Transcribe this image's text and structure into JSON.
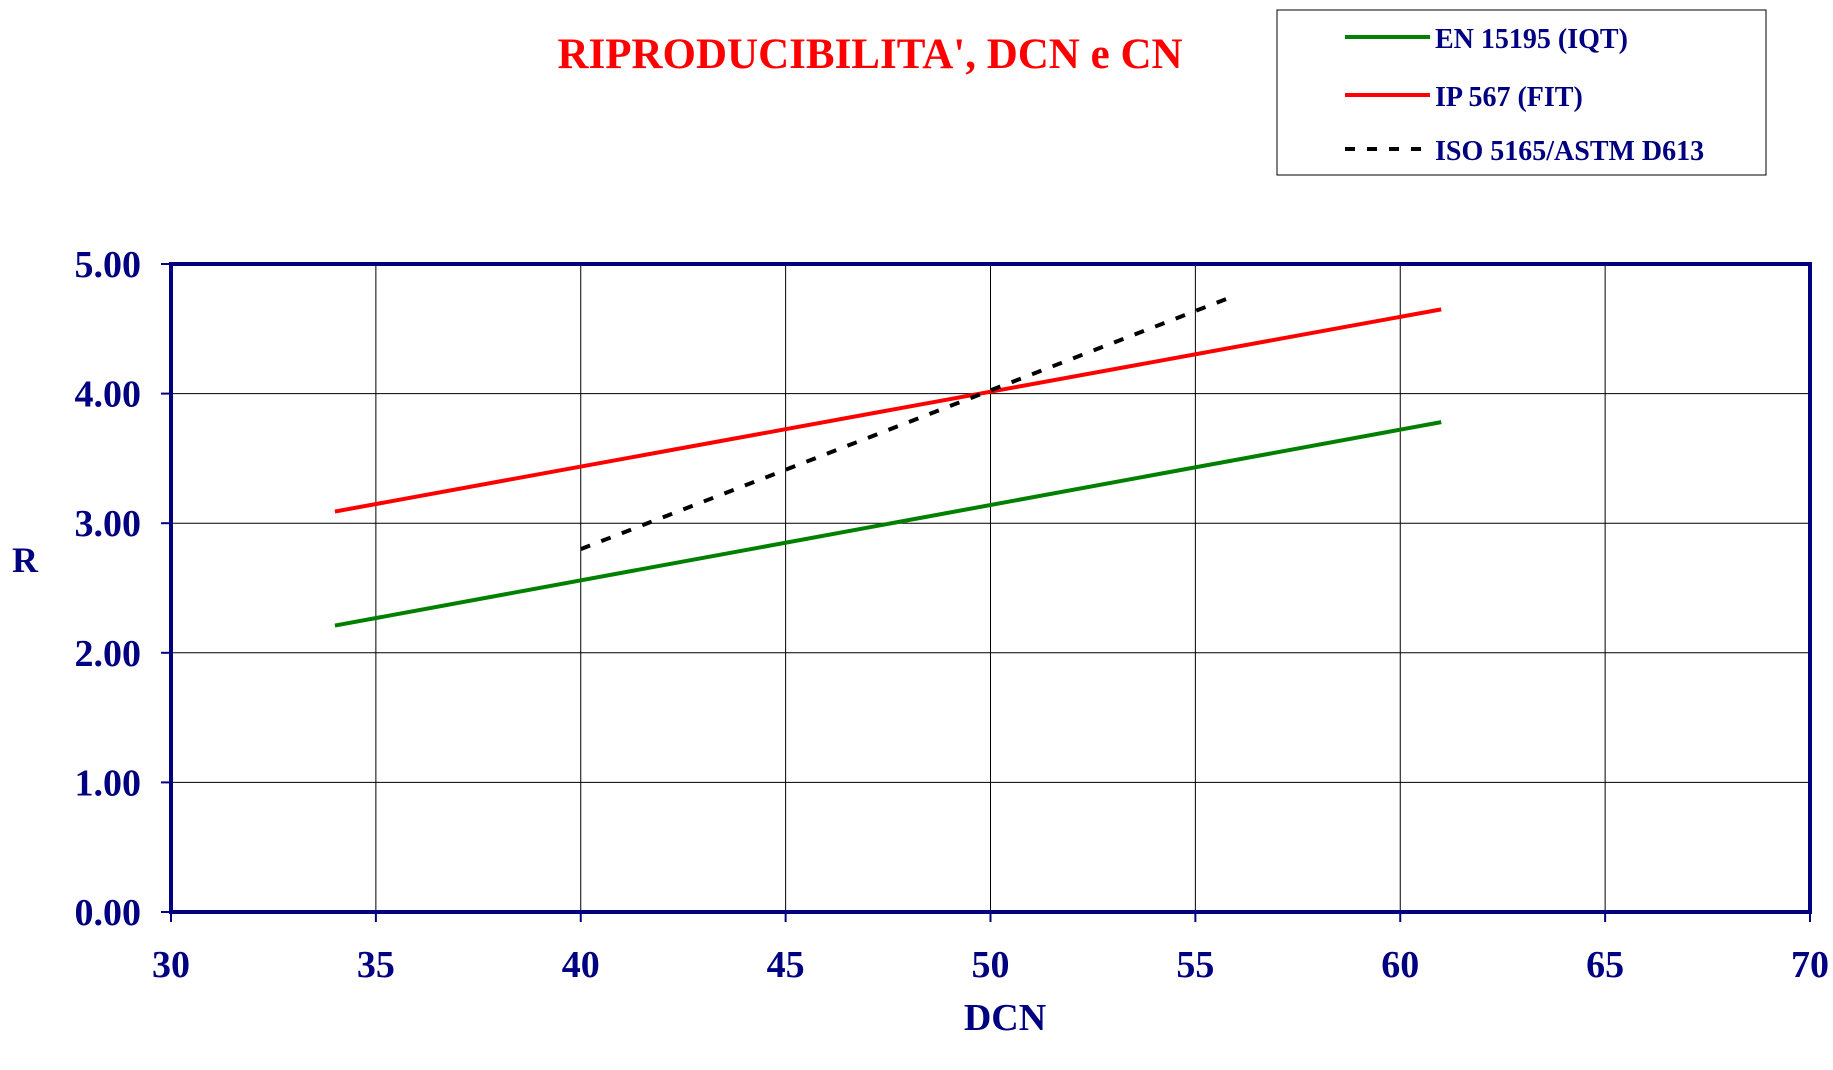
{
  "chart_data": {
    "type": "line",
    "title": "RIPRODUCIBILITA', DCN e CN",
    "xlabel": "DCN",
    "ylabel": "R",
    "xlim": [
      30,
      70
    ],
    "ylim": [
      0,
      5
    ],
    "xticks": [
      30,
      35,
      40,
      45,
      50,
      55,
      60,
      65,
      70
    ],
    "yticks": [
      0,
      1,
      2,
      3,
      4,
      5
    ],
    "xtick_labels": [
      "30",
      "35",
      "40",
      "45",
      "50",
      "55",
      "60",
      "65",
      "70"
    ],
    "ytick_labels": [
      "0.00",
      "1.00",
      "2.00",
      "3.00",
      "4.00",
      "5.00"
    ],
    "grid": true,
    "legend_position": "top-right",
    "series": [
      {
        "name": "EN 15195 (IQT)",
        "color": "#008000",
        "style": "solid",
        "x": [
          34,
          61
        ],
        "y": [
          2.21,
          3.78
        ]
      },
      {
        "name": "IP 567 (FIT)",
        "color": "#ff0000",
        "style": "solid",
        "x": [
          34,
          61
        ],
        "y": [
          3.09,
          4.65
        ]
      },
      {
        "name": "ISO 5165/ASTM D613",
        "color": "#000000",
        "style": "dashed",
        "x": [
          40,
          56
        ],
        "y": [
          2.8,
          4.76
        ]
      }
    ],
    "colors": {
      "title": "#ff0000",
      "axis_text": "#000080",
      "legend_text": "#000080",
      "frame": "#000080",
      "grid": "#000000"
    }
  }
}
